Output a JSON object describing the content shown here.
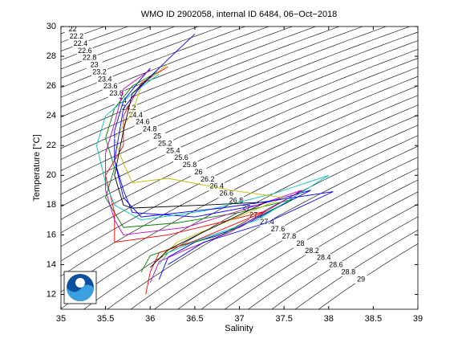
{
  "chart_data": {
    "type": "ts-diagram",
    "title": "WMO ID 2902058, internal ID 6484, 06−Oct−2018",
    "x_label": "Salinity",
    "y_label": "Temperature [°C]",
    "xlim": [
      35,
      39
    ],
    "ylim": [
      11,
      30
    ],
    "xticks": [
      35,
      35.5,
      36,
      36.5,
      37,
      37.5,
      38,
      38.5,
      39
    ],
    "yticks": [
      12,
      14,
      16,
      18,
      20,
      22,
      24,
      26,
      28,
      30
    ],
    "isopycnals": [
      21.8,
      22,
      22.2,
      22.4,
      22.6,
      22.8,
      23,
      23.2,
      23.4,
      23.6,
      23.8,
      24,
      24.2,
      24.4,
      24.6,
      24.8,
      25,
      25.2,
      25.4,
      25.6,
      25.8,
      26,
      26.2,
      26.4,
      26.6,
      26.8,
      27,
      27.2,
      27.4,
      27.6,
      27.8,
      28,
      28.2,
      28.4,
      28.6,
      28.8,
      29
    ],
    "series": [
      {
        "color": "#0000ff",
        "x": [
          36.0,
          35.9,
          35.7,
          35.6,
          35.6,
          35.7,
          35.8,
          36.5,
          37.2,
          37.8,
          37.0,
          36.5,
          36.2,
          36.1
        ],
        "values": [
          27.2,
          26.5,
          25.0,
          23.0,
          21.0,
          19.0,
          17.5,
          17.2,
          18.0,
          19.0,
          16.5,
          15.5,
          14.5,
          13.0
        ]
      },
      {
        "color": "#008000",
        "x": [
          36.1,
          35.8,
          35.6,
          35.5,
          35.6,
          35.5,
          35.7,
          36.3,
          37.0,
          37.6,
          36.8,
          36.3,
          36.0,
          35.9
        ],
        "values": [
          27.0,
          26.0,
          24.5,
          22.5,
          20.5,
          18.5,
          16.5,
          16.8,
          17.5,
          18.4,
          16.0,
          15.2,
          14.6,
          13.5
        ]
      },
      {
        "color": "#ff0000",
        "x": [
          36.2,
          35.9,
          35.7,
          35.7,
          35.5,
          35.6,
          35.6,
          36.2,
          36.9,
          37.3,
          36.5,
          36.1,
          36.0,
          35.95
        ],
        "values": [
          27.3,
          26.2,
          24.0,
          22.0,
          20.0,
          17.5,
          15.5,
          16.0,
          17.0,
          17.6,
          15.6,
          14.8,
          13.5,
          12.0
        ]
      },
      {
        "color": "#00bfbf",
        "x": [
          36.1,
          35.8,
          35.5,
          35.4,
          35.5,
          35.6,
          35.9,
          36.6,
          37.4,
          38.0,
          37.2,
          36.6,
          36.2,
          36.1
        ],
        "values": [
          26.8,
          25.5,
          24.0,
          22.0,
          19.5,
          18.0,
          17.0,
          17.6,
          18.8,
          20.0,
          17.0,
          15.8,
          14.8,
          14.0
        ]
      },
      {
        "color": "#bf00bf",
        "x": [
          36.0,
          35.7,
          35.6,
          35.5,
          35.5,
          35.6,
          35.7,
          36.4,
          37.1,
          37.7,
          36.9,
          36.4,
          36.1,
          36.0
        ],
        "values": [
          27.1,
          25.8,
          23.5,
          21.5,
          19.0,
          17.0,
          16.0,
          16.5,
          17.8,
          19.0,
          16.2,
          15.0,
          14.2,
          12.8
        ]
      },
      {
        "color": "#bfbf00",
        "x": [
          36.2,
          35.9,
          35.8,
          35.6,
          35.7,
          35.8,
          36.2,
          36.9,
          37.5,
          36.7,
          36.3,
          36.1
        ],
        "values": [
          27.5,
          26.0,
          24.2,
          22.5,
          20.8,
          19.5,
          19.8,
          19.0,
          18.5,
          16.5,
          15.5,
          14.3
        ]
      },
      {
        "color": "#000000",
        "x": [
          36.1,
          35.8,
          35.7,
          35.6,
          35.7,
          35.8,
          36.6,
          37.3,
          36.6,
          36.2,
          36.0
        ],
        "values": [
          27.2,
          25.5,
          23.0,
          20.0,
          18.0,
          17.8,
          18.0,
          18.2,
          16.2,
          15.0,
          13.8
        ]
      },
      {
        "color": "#0000ff",
        "x": [
          36.5,
          36.2,
          35.9,
          35.7,
          35.6,
          35.7,
          35.9,
          36.8,
          37.6,
          38.05,
          37.3,
          36.6,
          36.2
        ],
        "values": [
          29.5,
          27.8,
          26.0,
          24.5,
          21.0,
          18.5,
          17.2,
          17.8,
          18.5,
          18.9,
          16.8,
          15.5,
          14.0
        ]
      }
    ]
  }
}
